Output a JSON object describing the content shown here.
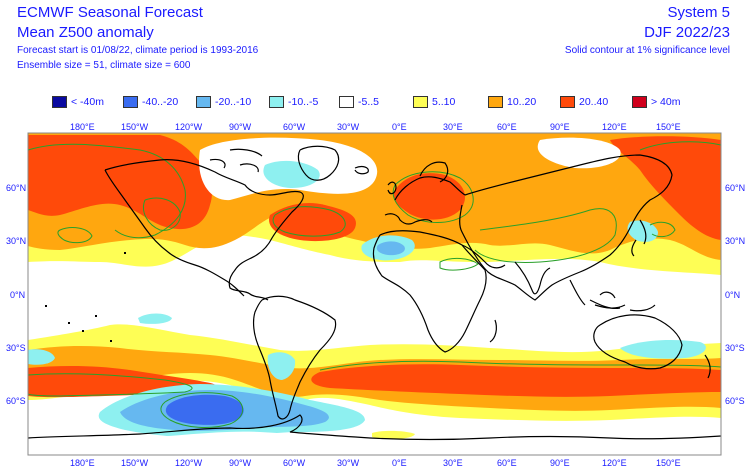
{
  "header": {
    "title": "ECMWF Seasonal Forecast",
    "subtitle": "Mean Z500 anomaly",
    "forecast_info": "Forecast start is 01/08/22, climate period is 1993-2016",
    "ensemble_info": "Ensemble size = 51, climate size = 600",
    "system": "System 5",
    "season": "DJF 2022/23",
    "significance_note": "Solid contour at 1% significance level"
  },
  "legend": [
    {
      "label": "< -40m",
      "color": "#0a0aa0"
    },
    {
      "label": "-40..-20",
      "color": "#3a6cf0"
    },
    {
      "label": "-20..-10",
      "color": "#66b8f0"
    },
    {
      "label": "-10..-5",
      "color": "#8ef0f0"
    },
    {
      "label": "-5..5",
      "color": "#ffffff"
    },
    {
      "label": "5..10",
      "color": "#fefe55"
    },
    {
      "label": "10..20",
      "color": "#ffa70f"
    },
    {
      "label": "20..40",
      "color": "#ff4a0a"
    },
    {
      "label": "> 40m",
      "color": "#d0001c"
    }
  ],
  "axes": {
    "top_lon": [
      "180°E",
      "150°W",
      "120°W",
      "90°W",
      "60°W",
      "30°W",
      "0°E",
      "30°E",
      "60°E",
      "90°E",
      "120°E",
      "150°E"
    ],
    "bottom_lon": [
      "180°E",
      "150°W",
      "120°W",
      "90°W",
      "60°W",
      "30°W",
      "0°E",
      "30°E",
      "60°E",
      "90°E",
      "120°E",
      "150°E"
    ],
    "lat_left": [
      "60°N",
      "30°N",
      "0°N",
      "30°S",
      "60°S"
    ],
    "lat_right": [
      "60°N",
      "30°N",
      "0°N",
      "30°S",
      "60°S"
    ]
  }
}
